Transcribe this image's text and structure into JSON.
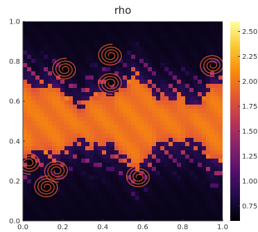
{
  "chart_data": {
    "type": "heatmap",
    "title": "rho",
    "xlabel": "",
    "ylabel": "",
    "xlim": [
      0.0,
      1.0
    ],
    "ylim": [
      0.0,
      1.0
    ],
    "x_ticks": [
      "0.0",
      "0.2",
      "0.4",
      "0.6",
      "0.8",
      "1.0"
    ],
    "y_ticks": [
      "0.0",
      "0.2",
      "0.4",
      "0.6",
      "0.8",
      "1.0"
    ],
    "x_tick_values": [
      0.0,
      0.2,
      0.4,
      0.6,
      0.8,
      1.0
    ],
    "y_tick_values": [
      0.0,
      0.2,
      0.4,
      0.6,
      0.8,
      1.0
    ],
    "colorbar": {
      "colormap": "inferno",
      "range": [
        0.6,
        2.6
      ],
      "tick_values": [
        0.75,
        1.0,
        1.25,
        1.5,
        1.75,
        2.0,
        2.25,
        2.5
      ],
      "tick_labels": [
        "0.75",
        "1.00",
        "1.25",
        "1.50",
        "1.75",
        "2.00",
        "2.25",
        "2.50"
      ]
    },
    "field": {
      "description_values": "dense central band y in about [0.35, 0.65] with rho near 2.0; light fluid outside with rho near 0.6-0.9; Kelvin-Helmholtz rolled-up vortices along both interfaces",
      "band_center": 0.5,
      "band_half_width": 0.14,
      "rho_inside": 2.0,
      "rho_outside": 0.68,
      "vortices": [
        {
          "x": 0.44,
          "y": 0.83
        },
        {
          "x": 0.44,
          "y": 0.69
        },
        {
          "x": 0.21,
          "y": 0.76
        },
        {
          "x": 0.95,
          "y": 0.78
        },
        {
          "x": 0.58,
          "y": 0.22
        },
        {
          "x": 0.17,
          "y": 0.25
        },
        {
          "x": 0.12,
          "y": 0.17
        },
        {
          "x": 0.03,
          "y": 0.29
        }
      ]
    },
    "grid": false,
    "legend": "none"
  }
}
